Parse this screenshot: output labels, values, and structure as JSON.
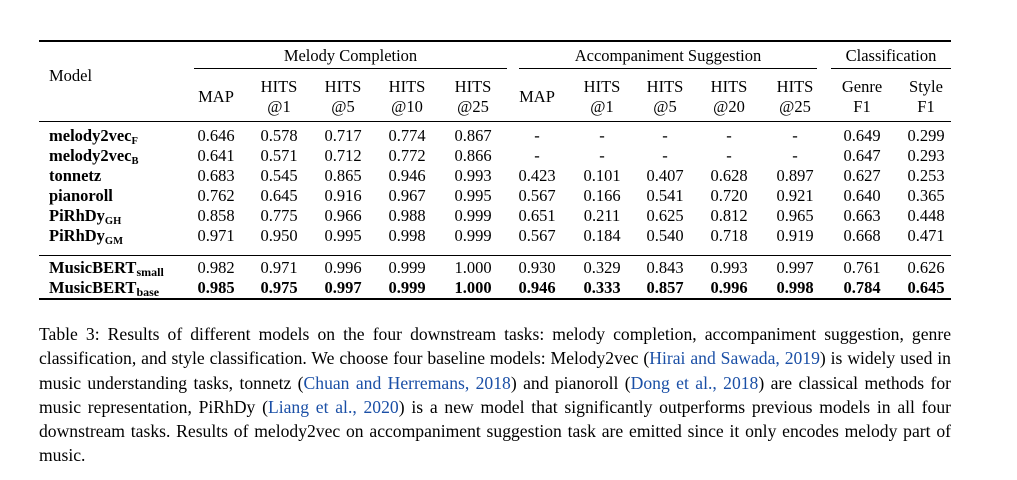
{
  "table": {
    "header": {
      "model": "Model",
      "groups": {
        "melody": "Melody Completion",
        "accomp": "Accompaniment Suggestion",
        "classif": "Classification"
      },
      "cols": [
        {
          "l1": "MAP",
          "l2": ""
        },
        {
          "l1": "HITS",
          "l2": "@1"
        },
        {
          "l1": "HITS",
          "l2": "@5"
        },
        {
          "l1": "HITS",
          "l2": "@10"
        },
        {
          "l1": "HITS",
          "l2": "@25"
        },
        {
          "l1": "MAP",
          "l2": ""
        },
        {
          "l1": "HITS",
          "l2": "@1"
        },
        {
          "l1": "HITS",
          "l2": "@5"
        },
        {
          "l1": "HITS",
          "l2": "@20"
        },
        {
          "l1": "HITS",
          "l2": "@25"
        },
        {
          "l1": "Genre",
          "l2": "F1"
        },
        {
          "l1": "Style",
          "l2": "F1"
        }
      ]
    },
    "rows": [
      {
        "name": "melody2vec",
        "sub": "F",
        "vals": [
          "0.646",
          "0.578",
          "0.717",
          "0.774",
          "0.867",
          "-",
          "-",
          "-",
          "-",
          "-",
          "0.649",
          "0.299"
        ]
      },
      {
        "name": "melody2vec",
        "sub": "B",
        "vals": [
          "0.641",
          "0.571",
          "0.712",
          "0.772",
          "0.866",
          "-",
          "-",
          "-",
          "-",
          "-",
          "0.647",
          "0.293"
        ]
      },
      {
        "name": "tonnetz",
        "sub": "",
        "vals": [
          "0.683",
          "0.545",
          "0.865",
          "0.946",
          "0.993",
          "0.423",
          "0.101",
          "0.407",
          "0.628",
          "0.897",
          "0.627",
          "0.253"
        ]
      },
      {
        "name": "pianoroll",
        "sub": "",
        "vals": [
          "0.762",
          "0.645",
          "0.916",
          "0.967",
          "0.995",
          "0.567",
          "0.166",
          "0.541",
          "0.720",
          "0.921",
          "0.640",
          "0.365"
        ]
      },
      {
        "name": "PiRhDy",
        "sub": "GH",
        "vals": [
          "0.858",
          "0.775",
          "0.966",
          "0.988",
          "0.999",
          "0.651",
          "0.211",
          "0.625",
          "0.812",
          "0.965",
          "0.663",
          "0.448"
        ]
      },
      {
        "name": "PiRhDy",
        "sub": "GM",
        "vals": [
          "0.971",
          "0.950",
          "0.995",
          "0.998",
          "0.999",
          "0.567",
          "0.184",
          "0.540",
          "0.718",
          "0.919",
          "0.668",
          "0.471"
        ]
      }
    ],
    "rows2": [
      {
        "name": "MusicBERT",
        "sub": "small",
        "bold": false,
        "vals": [
          "0.982",
          "0.971",
          "0.996",
          "0.999",
          "1.000",
          "0.930",
          "0.329",
          "0.843",
          "0.993",
          "0.997",
          "0.761",
          "0.626"
        ]
      },
      {
        "name": "MusicBERT",
        "sub": "base",
        "bold": true,
        "vals": [
          "0.985",
          "0.975",
          "0.997",
          "0.999",
          "1.000",
          "0.946",
          "0.333",
          "0.857",
          "0.996",
          "0.998",
          "0.784",
          "0.645"
        ]
      }
    ]
  },
  "caption": {
    "t1": "Table 3: Results of different models on the four downstream tasks: melody completion, accompaniment suggestion, genre classification, and style classification. We choose four baseline models: Melody2vec (",
    "c1": "Hirai and Sawada, 2019",
    "t2": ") is widely used in music understanding tasks, tonnetz (",
    "c2": "Chuan and Herremans, 2018",
    "t3": ") and pianoroll (",
    "c3": "Dong et al., 2018",
    "t4": ") are classical methods for music representation, PiRhDy (",
    "c4": "Liang et al., 2020",
    "t5": ") is a new model that significantly outperforms previous models in all four downstream tasks. Results of melody2vec on accompaniment suggestion task are emitted since it only encodes melody part of music."
  },
  "colors": {
    "citation": "#1a4fa6",
    "text": "#000000"
  }
}
